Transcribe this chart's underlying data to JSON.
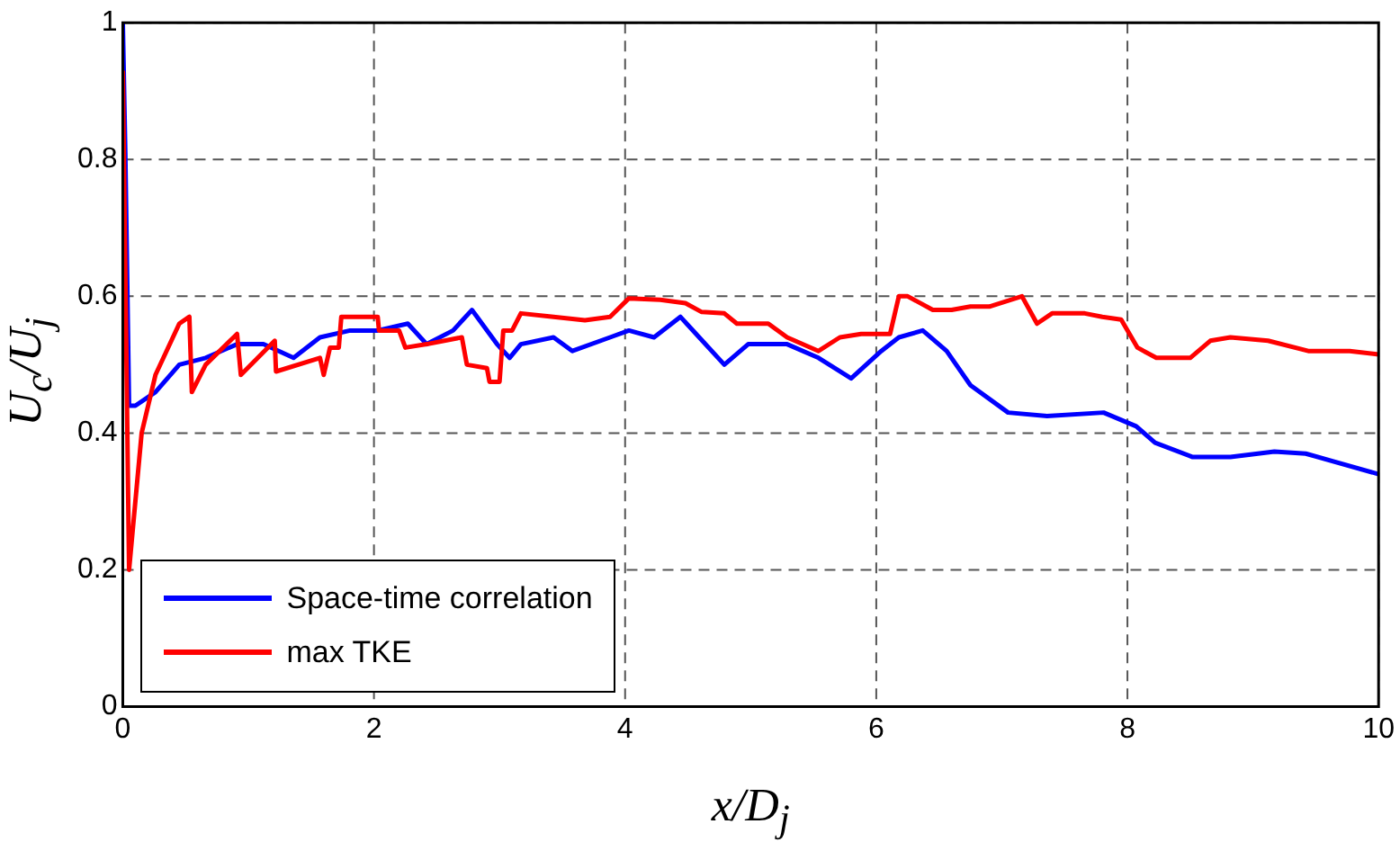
{
  "chart_data": {
    "type": "line",
    "xlabel": "x/D$_{j}$",
    "ylabel": "U$_{c}$/U$_{j}$",
    "xlim": [
      0,
      10
    ],
    "ylim": [
      0,
      1
    ],
    "xticks": [
      0,
      2,
      4,
      6,
      8,
      10
    ],
    "yticks": [
      0,
      0.2,
      0.4,
      0.6,
      0.8,
      1
    ],
    "grid": true,
    "legend": "bottom left",
    "marker": "none",
    "line_style": "solid",
    "series": [
      {
        "name": "Space-time correlation",
        "color": "#0000ff",
        "x": [
          0,
          0.02,
          0.05,
          0.1,
          0.26,
          0.45,
          0.66,
          0.91,
          1.12,
          1.36,
          1.57,
          1.81,
          2.03,
          2.27,
          2.42,
          2.63,
          2.78,
          2.98,
          3.08,
          3.17,
          3.43,
          3.58,
          3.88,
          4.03,
          4.23,
          4.44,
          4.59,
          4.79,
          4.98,
          5.13,
          5.29,
          5.54,
          5.8,
          6.04,
          6.18,
          6.37,
          6.56,
          6.75,
          7.05,
          7.36,
          7.81,
          8.07,
          8.22,
          8.52,
          8.82,
          9.17,
          9.42,
          10
        ],
        "values": [
          1,
          0.81,
          0.44,
          0.44,
          0.46,
          0.5,
          0.51,
          0.53,
          0.53,
          0.51,
          0.54,
          0.55,
          0.55,
          0.56,
          0.53,
          0.55,
          0.58,
          0.53,
          0.51,
          0.53,
          0.54,
          0.52,
          0.54,
          0.55,
          0.54,
          0.57,
          0.54,
          0.5,
          0.53,
          0.53,
          0.53,
          0.51,
          0.48,
          0.52,
          0.54,
          0.55,
          0.52,
          0.47,
          0.43,
          0.425,
          0.43,
          0.41,
          0.386,
          0.365,
          0.365,
          0.373,
          0.37,
          0.34
        ]
      },
      {
        "name": "max TKE",
        "color": "#ff0000",
        "x": [
          0,
          0.05,
          0.15,
          0.26,
          0.45,
          0.53,
          0.55,
          0.66,
          0.91,
          0.94,
          1.21,
          1.22,
          1.57,
          1.6,
          1.65,
          1.72,
          1.74,
          1.86,
          2.03,
          2.04,
          2.2,
          2.25,
          2.42,
          2.7,
          2.74,
          2.9,
          2.92,
          3.0,
          3.03,
          3.1,
          3.17,
          3.43,
          3.68,
          3.88,
          4.03,
          4.28,
          4.48,
          4.61,
          4.79,
          4.89,
          5.14,
          5.29,
          5.54,
          5.71,
          5.88,
          6.11,
          6.18,
          6.25,
          6.45,
          6.6,
          6.75,
          6.9,
          7.16,
          7.28,
          7.4,
          7.66,
          7.8,
          7.95,
          8.08,
          8.23,
          8.5,
          8.66,
          8.82,
          9.12,
          9.44,
          9.77,
          10
        ],
        "values": [
          0.93,
          0.2,
          0.4,
          0.485,
          0.56,
          0.57,
          0.46,
          0.5,
          0.545,
          0.485,
          0.535,
          0.49,
          0.51,
          0.485,
          0.525,
          0.525,
          0.57,
          0.57,
          0.57,
          0.55,
          0.55,
          0.525,
          0.53,
          0.54,
          0.5,
          0.495,
          0.475,
          0.475,
          0.55,
          0.55,
          0.575,
          0.57,
          0.565,
          0.57,
          0.597,
          0.595,
          0.59,
          0.577,
          0.575,
          0.56,
          0.56,
          0.54,
          0.52,
          0.54,
          0.545,
          0.545,
          0.6,
          0.6,
          0.58,
          0.58,
          0.585,
          0.585,
          0.6,
          0.56,
          0.575,
          0.575,
          0.57,
          0.566,
          0.525,
          0.51,
          0.51,
          0.535,
          0.54,
          0.535,
          0.52,
          0.52,
          0.515
        ]
      }
    ]
  }
}
